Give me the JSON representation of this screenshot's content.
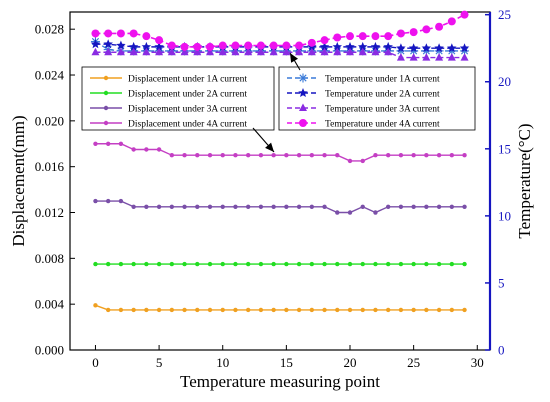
{
  "chart_data": {
    "type": "line",
    "xlabel": "Temperature measuring point",
    "ylabel": "Displacement(mm)",
    "y2label": "Temperature(°C)",
    "xlim": [
      -2,
      31
    ],
    "ylim": [
      0,
      0.0295
    ],
    "y2lim": [
      0,
      25.2
    ],
    "xticks": [
      0,
      5,
      10,
      15,
      20,
      25,
      30
    ],
    "yticks": [
      0,
      0.004,
      0.008,
      0.012,
      0.016,
      0.02,
      0.024,
      0.028
    ],
    "yticklabels": [
      "0.000",
      "0.004",
      "0.008",
      "0.012",
      "0.016",
      "0.020",
      "0.024",
      "0.028"
    ],
    "y2ticks": [
      0,
      5,
      10,
      15,
      20,
      25
    ],
    "x": [
      0,
      1,
      2,
      3,
      4,
      5,
      6,
      7,
      8,
      9,
      10,
      11,
      12,
      13,
      14,
      15,
      16,
      17,
      18,
      19,
      20,
      21,
      22,
      23,
      24,
      25,
      26,
      27,
      28,
      29
    ],
    "series": [
      {
        "name": "Displacement under 1A current",
        "axis": "left",
        "color": "#f0a020",
        "marker": "circle-small",
        "values": [
          0.0039,
          0.0035,
          0.0035,
          0.0035,
          0.0035,
          0.0035,
          0.0035,
          0.0035,
          0.0035,
          0.0035,
          0.0035,
          0.0035,
          0.0035,
          0.0035,
          0.0035,
          0.0035,
          0.0035,
          0.0035,
          0.0035,
          0.0035,
          0.0035,
          0.0035,
          0.0035,
          0.0035,
          0.0035,
          0.0035,
          0.0035,
          0.0035,
          0.0035,
          0.0035
        ]
      },
      {
        "name": "Displacement under 2A current",
        "axis": "left",
        "color": "#22dd22",
        "marker": "circle-small",
        "values": [
          0.0075,
          0.0075,
          0.0075,
          0.0075,
          0.0075,
          0.0075,
          0.0075,
          0.0075,
          0.0075,
          0.0075,
          0.0075,
          0.0075,
          0.0075,
          0.0075,
          0.0075,
          0.0075,
          0.0075,
          0.0075,
          0.0075,
          0.0075,
          0.0075,
          0.0075,
          0.0075,
          0.0075,
          0.0075,
          0.0075,
          0.0075,
          0.0075,
          0.0075,
          0.0075
        ]
      },
      {
        "name": "Displacement under 3A current",
        "axis": "left",
        "color": "#7a4fa8",
        "marker": "circle-small",
        "values": [
          0.013,
          0.013,
          0.013,
          0.0125,
          0.0125,
          0.0125,
          0.0125,
          0.0125,
          0.0125,
          0.0125,
          0.0125,
          0.0125,
          0.0125,
          0.0125,
          0.0125,
          0.0125,
          0.0125,
          0.0125,
          0.0125,
          0.012,
          0.012,
          0.0125,
          0.012,
          0.0125,
          0.0125,
          0.0125,
          0.0125,
          0.0125,
          0.0125,
          0.0125
        ]
      },
      {
        "name": "Displacement under 4A current",
        "axis": "left",
        "color": "#c43fc4",
        "marker": "circle-small",
        "values": [
          0.018,
          0.018,
          0.018,
          0.0175,
          0.0175,
          0.0175,
          0.017,
          0.017,
          0.017,
          0.017,
          0.017,
          0.017,
          0.017,
          0.017,
          0.017,
          0.017,
          0.017,
          0.017,
          0.017,
          0.017,
          0.0165,
          0.0165,
          0.017,
          0.017,
          0.017,
          0.017,
          0.017,
          0.017,
          0.017,
          0.017
        ]
      },
      {
        "name": "Temperature under 1A current",
        "axis": "right",
        "color": "#3a7ad8",
        "marker": "asterisk",
        "values": [
          23.0,
          22.4,
          22.3,
          22.3,
          22.3,
          22.3,
          22.3,
          22.3,
          22.3,
          22.3,
          22.3,
          22.3,
          22.3,
          22.3,
          22.3,
          22.3,
          22.3,
          22.3,
          22.3,
          22.3,
          22.3,
          22.3,
          22.3,
          22.3,
          22.3,
          22.3,
          22.3,
          22.3,
          22.3,
          22.3
        ]
      },
      {
        "name": "Temperature under 2A current",
        "axis": "right",
        "color": "#1515c0",
        "marker": "star",
        "values": [
          22.8,
          22.8,
          22.7,
          22.6,
          22.6,
          22.6,
          22.6,
          22.6,
          22.6,
          22.6,
          22.6,
          22.6,
          22.6,
          22.6,
          22.6,
          22.6,
          22.6,
          22.6,
          22.6,
          22.6,
          22.6,
          22.6,
          22.6,
          22.6,
          22.5,
          22.5,
          22.5,
          22.5,
          22.5,
          22.5
        ]
      },
      {
        "name": "Temperature under 3A current",
        "axis": "right",
        "color": "#8a2be2",
        "marker": "triangle",
        "values": [
          22.2,
          22.2,
          22.2,
          22.2,
          22.2,
          22.2,
          22.2,
          22.2,
          22.2,
          22.2,
          22.2,
          22.2,
          22.2,
          22.2,
          22.2,
          22.2,
          22.2,
          22.2,
          22.2,
          22.2,
          22.2,
          22.2,
          22.2,
          22.2,
          21.8,
          21.8,
          21.8,
          21.8,
          21.8,
          21.8
        ]
      },
      {
        "name": "Temperature under 4A current",
        "axis": "right",
        "color": "#ee11ee",
        "marker": "circle-large",
        "values": [
          23.6,
          23.6,
          23.6,
          23.6,
          23.4,
          23.1,
          22.7,
          22.6,
          22.6,
          22.6,
          22.7,
          22.7,
          22.7,
          22.7,
          22.7,
          22.7,
          22.7,
          22.9,
          23.1,
          23.3,
          23.4,
          23.4,
          23.4,
          23.4,
          23.6,
          23.7,
          23.9,
          24.1,
          24.5,
          25.0
        ]
      }
    ],
    "legend_left": {
      "placement": "center-left",
      "entries": [
        "Displacement under 1A current",
        "Displacement under 2A current",
        "Displacement under 3A current",
        "Displacement under 4A current"
      ]
    },
    "legend_right": {
      "placement": "center-right",
      "entries": [
        "Temperature under 1A current",
        "Temperature under 2A current",
        "Temperature under 3A current",
        "Temperature under 4A current"
      ]
    },
    "annotations": [
      {
        "type": "arrow",
        "from_legend": "left",
        "to_series": "Displacement under 4A current"
      },
      {
        "type": "arrow",
        "from_legend": "right",
        "to_series": "Temperature under 4A current"
      }
    ],
    "colors": {
      "right_axis": "#1515c0",
      "left_axis": "#000000"
    }
  }
}
